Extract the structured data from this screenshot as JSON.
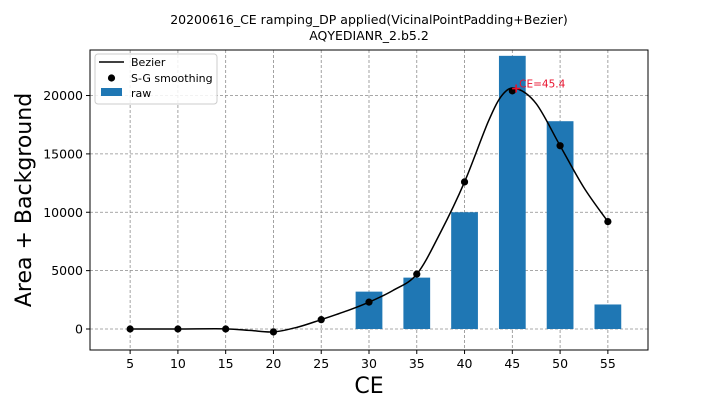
{
  "chart_data": {
    "type": "bar",
    "title": "20200616_CE ramping_DP applied(VicinalPointPadding+Bezier)",
    "subtitle": "AQYEDIANR_2.b5.2",
    "xlabel": "CE",
    "ylabel": "Area + Background",
    "xlim": [
      0.8,
      59.2
    ],
    "ylim": [
      -1800,
      23900
    ],
    "x_ticks": [
      5,
      10,
      15,
      20,
      25,
      30,
      35,
      40,
      45,
      50,
      55
    ],
    "y_ticks": [
      0,
      5000,
      10000,
      15000,
      20000
    ],
    "grid": true,
    "legend_position": "top-left",
    "series": [
      {
        "name": "Bezier",
        "type": "line",
        "color": "#000000",
        "x": [
          5,
          10,
          15,
          17.5,
          20,
          22.5,
          25,
          27.5,
          30,
          32.5,
          35,
          37.5,
          40,
          42.5,
          44,
          45.4,
          47.5,
          50,
          52.5,
          55
        ],
        "values": [
          0,
          0,
          10,
          -120,
          -250,
          150,
          800,
          1500,
          2300,
          3300,
          4700,
          8300,
          12600,
          17800,
          20100,
          20600,
          19300,
          15700,
          12100,
          9200
        ]
      },
      {
        "name": "S-G smoothing",
        "type": "scatter",
        "color": "#000000",
        "x": [
          5,
          10,
          15,
          20,
          25,
          30,
          35,
          40,
          45,
          50,
          55
        ],
        "values": [
          0,
          0,
          0,
          -250,
          800,
          2300,
          4700,
          12600,
          20400,
          15700,
          9200
        ]
      },
      {
        "name": "raw",
        "type": "bar",
        "color": "#1f77b4",
        "x": [
          30,
          35,
          40,
          45,
          50,
          55
        ],
        "values": [
          3200,
          4400,
          10000,
          23400,
          17800,
          2100
        ]
      }
    ],
    "annotation": {
      "text": "CE=45.4",
      "x": 45.4,
      "y": 20600,
      "color": "#e8112d"
    }
  }
}
